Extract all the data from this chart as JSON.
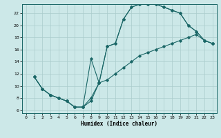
{
  "title": "",
  "xlabel": "Humidex (Indice chaleur)",
  "bg_color": "#cce8e8",
  "grid_color": "#aacccc",
  "line_color": "#1a6666",
  "xlim": [
    -0.5,
    23.5
  ],
  "ylim": [
    5.5,
    23.5
  ],
  "xticks": [
    0,
    1,
    2,
    3,
    4,
    5,
    6,
    7,
    8,
    9,
    10,
    11,
    12,
    13,
    14,
    15,
    16,
    17,
    18,
    19,
    20,
    21,
    22,
    23
  ],
  "yticks": [
    6,
    8,
    10,
    12,
    14,
    16,
    18,
    20,
    22
  ],
  "series1_x": [
    1,
    2,
    3,
    4,
    5,
    6,
    7,
    8,
    9,
    10,
    11,
    12,
    13,
    14,
    15,
    16,
    17,
    18,
    19,
    20,
    21,
    22,
    23
  ],
  "series1_y": [
    11.5,
    9.5,
    8.5,
    8.0,
    7.5,
    6.5,
    6.5,
    7.5,
    10.5,
    16.5,
    17.0,
    21.0,
    23.0,
    23.5,
    23.5,
    23.5,
    23.0,
    22.5,
    22.0,
    20.0,
    19.0,
    17.5,
    17.0
  ],
  "series2_x": [
    1,
    2,
    3,
    4,
    5,
    6,
    7,
    8,
    9,
    10,
    11,
    12,
    13,
    14,
    15,
    16,
    17,
    18,
    19,
    20,
    21,
    22,
    23
  ],
  "series2_y": [
    11.5,
    9.5,
    8.5,
    8.0,
    7.5,
    6.5,
    6.5,
    14.5,
    10.5,
    16.5,
    17.0,
    21.0,
    23.0,
    23.5,
    23.5,
    23.5,
    23.0,
    22.5,
    22.0,
    20.0,
    19.0,
    17.5,
    17.0
  ],
  "series3_x": [
    1,
    2,
    3,
    4,
    5,
    6,
    7,
    8,
    9,
    10,
    11,
    12,
    13,
    14,
    15,
    16,
    17,
    18,
    19,
    20,
    21,
    22,
    23
  ],
  "series3_y": [
    11.5,
    9.5,
    8.5,
    8.0,
    7.5,
    6.5,
    6.5,
    8.0,
    10.5,
    11.0,
    12.0,
    13.0,
    14.0,
    15.0,
    15.5,
    16.0,
    16.5,
    17.0,
    17.5,
    18.0,
    18.5,
    17.5,
    17.0
  ]
}
